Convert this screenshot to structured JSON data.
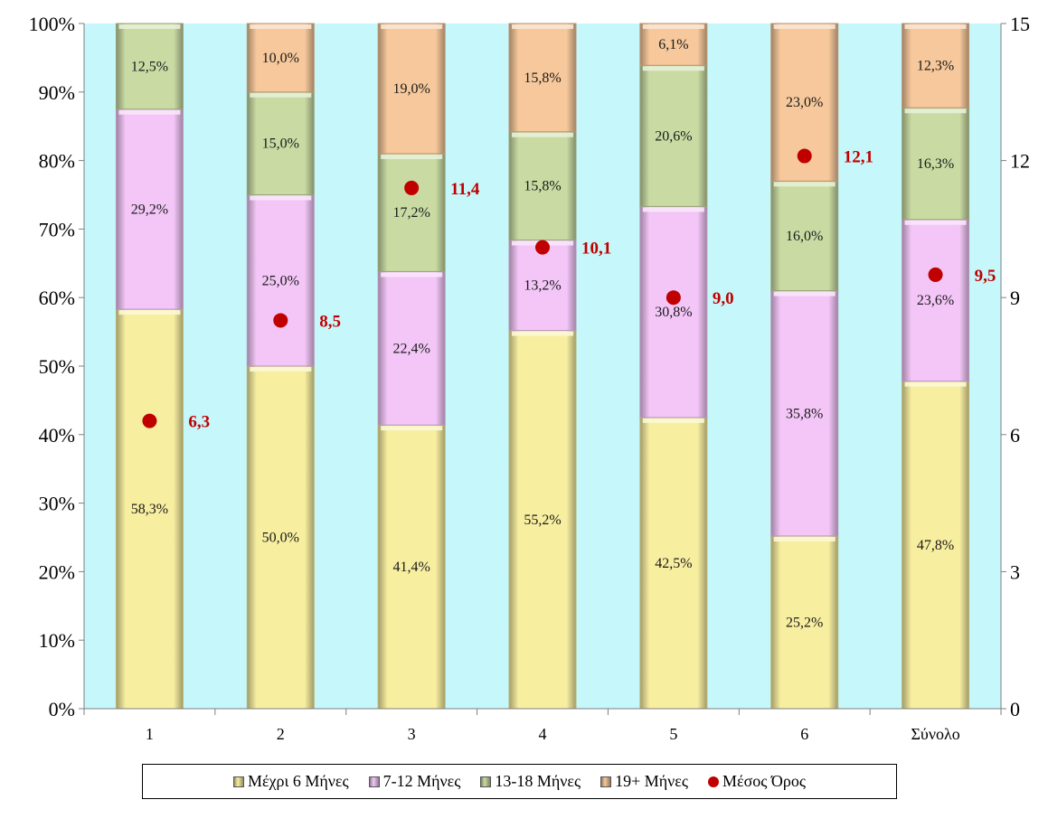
{
  "chart_data": {
    "type": "bar",
    "stacked": true,
    "percent_stacked": true,
    "categories": [
      "1",
      "2",
      "3",
      "4",
      "5",
      "6",
      "Σύνολο"
    ],
    "series": [
      {
        "name": "Μέχρι 6 Μήνες",
        "color": "#f7eea0",
        "values": [
          58.3,
          50.0,
          41.4,
          55.2,
          42.5,
          25.2,
          47.8
        ],
        "labels": [
          "58,3%",
          "50,0%",
          "41,4%",
          "55,2%",
          "42,5%",
          "25,2%",
          "47,8%"
        ]
      },
      {
        "name": "7-12 Μήνες",
        "color": "#f3c6f7",
        "values": [
          29.2,
          25.0,
          22.4,
          13.2,
          30.8,
          35.8,
          23.6
        ],
        "labels": [
          "29,2%",
          "25,0%",
          "22,4%",
          "13,2%",
          "30,8%",
          "35,8%",
          "23,6%"
        ]
      },
      {
        "name": "13-18 Μήνες",
        "color": "#c9dba3",
        "values": [
          12.5,
          15.0,
          17.2,
          15.8,
          20.6,
          16.0,
          16.3
        ],
        "labels": [
          "12,5%",
          "15,0%",
          "17,2%",
          "15,8%",
          "20,6%",
          "16,0%",
          "16,3%"
        ]
      },
      {
        "name": "19+ Μήνες",
        "color": "#f6c89b",
        "values": [
          0.0,
          10.0,
          19.0,
          15.8,
          6.1,
          23.0,
          12.3
        ],
        "labels": [
          "",
          "10,0%",
          "19,0%",
          "15,8%",
          "6,1%",
          "23,0%",
          "12,3%"
        ]
      }
    ],
    "mean_series": {
      "name": "Μέσος Όρος",
      "color": "#c00000",
      "axis": "secondary",
      "values": [
        6.3,
        8.5,
        11.4,
        10.1,
        9.0,
        12.1,
        9.5
      ],
      "labels": [
        "6,3",
        "8,5",
        "11,4",
        "10,1",
        "9,0",
        "12,1",
        "9,5"
      ]
    },
    "y_left": {
      "range": [
        0,
        100
      ],
      "ticks": [
        "0%",
        "10%",
        "20%",
        "30%",
        "40%",
        "50%",
        "60%",
        "70%",
        "80%",
        "90%",
        "100%"
      ]
    },
    "y_right": {
      "range": [
        0,
        15
      ],
      "ticks": [
        "0",
        "3",
        "6",
        "9",
        "12",
        "15"
      ]
    },
    "plot_background": "#c6f7fa",
    "legend_position": "bottom"
  }
}
